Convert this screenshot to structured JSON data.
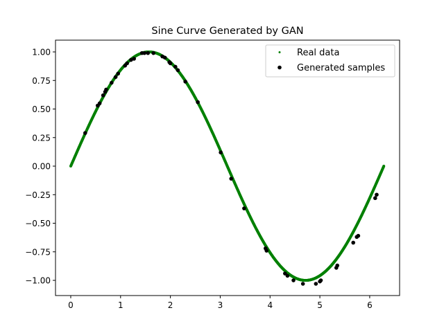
{
  "chart_data": {
    "type": "scatter",
    "title": "Sine Curve Generated by GAN",
    "xlabel": "",
    "ylabel": "",
    "xlim": [
      -0.306,
      6.6
    ],
    "ylim": [
      -1.133,
      1.103
    ],
    "xticks": [
      0,
      1,
      2,
      3,
      4,
      5,
      6
    ],
    "xtick_labels": [
      "0",
      "1",
      "2",
      "3",
      "4",
      "5",
      "6"
    ],
    "yticks": [
      1.0,
      0.75,
      0.5,
      0.25,
      0.0,
      -0.25,
      -0.5,
      -0.75,
      -1.0
    ],
    "ytick_labels": [
      "1.00",
      "0.75",
      "0.50",
      "0.25",
      "0.00",
      "−0.25",
      "−0.50",
      "−0.75",
      "−1.00"
    ],
    "grid": false,
    "legend_position": "top-right",
    "series": [
      {
        "name": "Real data",
        "color": "#008000",
        "marker": "small dot",
        "function": "y = sin(x)",
        "x_range": [
          0,
          6.283
        ]
      },
      {
        "name": "Generated samples",
        "color": "#000000",
        "marker": "dot",
        "points": [
          [
            0.29,
            0.29
          ],
          [
            0.54,
            0.53
          ],
          [
            0.58,
            0.55
          ],
          [
            0.65,
            0.62
          ],
          [
            0.69,
            0.65
          ],
          [
            0.71,
            0.67
          ],
          [
            0.82,
            0.73
          ],
          [
            0.9,
            0.78
          ],
          [
            0.95,
            0.81
          ],
          [
            1.09,
            0.88
          ],
          [
            1.13,
            0.9
          ],
          [
            1.21,
            0.93
          ],
          [
            1.27,
            0.94
          ],
          [
            1.43,
            0.99
          ],
          [
            1.48,
            0.99
          ],
          [
            1.55,
            0.99
          ],
          [
            1.66,
            0.99
          ],
          [
            1.84,
            0.96
          ],
          [
            1.89,
            0.95
          ],
          [
            1.98,
            0.91
          ],
          [
            2.0,
            0.9
          ],
          [
            2.1,
            0.87
          ],
          [
            2.15,
            0.84
          ],
          [
            2.3,
            0.74
          ],
          [
            2.55,
            0.56
          ],
          [
            3.01,
            0.12
          ],
          [
            3.22,
            -0.11
          ],
          [
            3.48,
            -0.37
          ],
          [
            3.91,
            -0.72
          ],
          [
            3.93,
            -0.74
          ],
          [
            4.3,
            -0.94
          ],
          [
            4.35,
            -0.96
          ],
          [
            4.47,
            -1.0
          ],
          [
            4.66,
            -1.03
          ],
          [
            4.92,
            -1.03
          ],
          [
            5.0,
            -1.01
          ],
          [
            5.02,
            -1.0
          ],
          [
            5.33,
            -0.89
          ],
          [
            5.35,
            -0.87
          ],
          [
            5.67,
            -0.67
          ],
          [
            5.74,
            -0.62
          ],
          [
            5.77,
            -0.61
          ],
          [
            6.11,
            -0.28
          ],
          [
            6.14,
            -0.25
          ]
        ]
      }
    ]
  }
}
